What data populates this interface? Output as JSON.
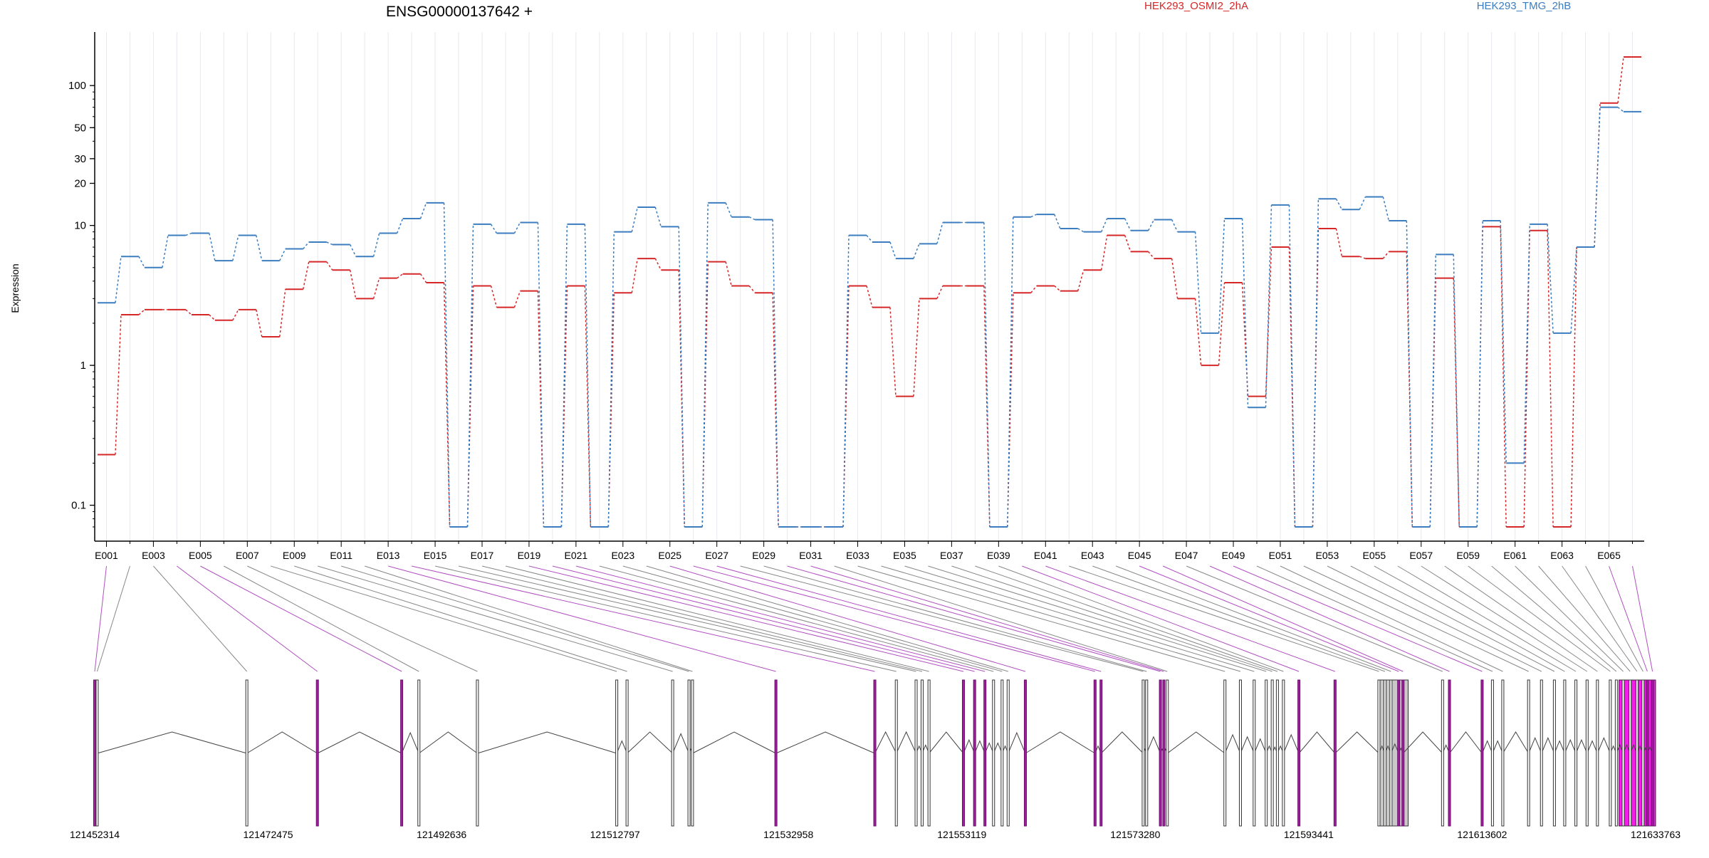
{
  "chart_data": {
    "type": "line",
    "title": "ENSG00000137642 +",
    "xlabel": "",
    "ylabel": "Expression",
    "yscale": "log",
    "ylim": [
      0.07,
      180
    ],
    "yticks": [
      {
        "value": 0.1,
        "label": "0.1"
      },
      {
        "value": 1,
        "label": "1"
      },
      {
        "value": 10,
        "label": "10"
      },
      {
        "value": 20,
        "label": "20"
      },
      {
        "value": 30,
        "label": "30"
      },
      {
        "value": 50,
        "label": "50"
      },
      {
        "value": 100,
        "label": "100"
      }
    ],
    "grid": true,
    "legend_position": "top",
    "colors": {
      "series_a": "#d62728",
      "series_b": "#3b7dbf",
      "exon": "#555555",
      "intron": "#444444",
      "highlight": "#a020a0",
      "grey_exon": "#c8c8c8",
      "magenta_exon": "#f01ee6"
    },
    "categories": [
      "E001",
      "E002",
      "E003",
      "E004",
      "E005",
      "E006",
      "E007",
      "E008",
      "E009",
      "E010",
      "E011",
      "E012",
      "E013",
      "E014",
      "E015",
      "E016",
      "E017",
      "E018",
      "E019",
      "E020",
      "E021",
      "E022",
      "E023",
      "E024",
      "E025",
      "E026",
      "E027",
      "E028",
      "E029",
      "E030",
      "E031",
      "E032",
      "E033",
      "E034",
      "E035",
      "E036",
      "E037",
      "E038",
      "E039",
      "E040",
      "E041",
      "E042",
      "E043",
      "E044",
      "E045",
      "E046",
      "E047",
      "E048",
      "E049",
      "E050",
      "E051",
      "E052",
      "E053",
      "E054",
      "E055",
      "E056",
      "E057",
      "E058",
      "E059",
      "E060",
      "E061",
      "E062",
      "E063",
      "E064",
      "E065",
      "E066"
    ],
    "series": [
      {
        "name": "HEK293_OSMI2_2hA",
        "values": [
          0.23,
          2.3,
          2.5,
          2.5,
          2.3,
          2.1,
          2.5,
          1.6,
          3.5,
          5.5,
          4.8,
          3.0,
          4.2,
          4.5,
          3.9,
          0.07,
          3.7,
          2.6,
          3.4,
          0.07,
          3.7,
          0.07,
          3.3,
          5.8,
          4.8,
          0.07,
          5.5,
          3.7,
          3.3,
          0.07,
          0.07,
          0.07,
          3.7,
          2.6,
          0.6,
          3.0,
          3.7,
          3.7,
          0.07,
          3.3,
          3.7,
          3.4,
          4.8,
          8.5,
          6.5,
          5.8,
          3.0,
          1.0,
          3.9,
          0.6,
          7.0,
          0.07,
          9.5,
          6.0,
          5.8,
          6.5,
          0.07,
          4.2,
          0.07,
          9.8,
          0.07,
          9.2,
          0.07,
          7.0,
          75,
          160
        ]
      },
      {
        "name": "HEK293_TMG_2hB",
        "values": [
          2.8,
          6.0,
          5.0,
          8.5,
          8.8,
          5.6,
          8.5,
          5.6,
          6.8,
          7.6,
          7.3,
          6.0,
          8.8,
          11.2,
          14.5,
          0.07,
          10.2,
          8.8,
          10.5,
          0.07,
          10.2,
          0.07,
          9.0,
          13.5,
          9.8,
          0.07,
          14.5,
          11.5,
          11.0,
          0.07,
          0.07,
          0.07,
          8.5,
          7.6,
          5.8,
          7.4,
          10.5,
          10.5,
          0.07,
          11.5,
          12,
          9.5,
          9.0,
          11.2,
          9.2,
          11.0,
          9.0,
          1.7,
          11.2,
          0.5,
          14.0,
          0.07,
          15.5,
          13.0,
          16.0,
          10.8,
          0.07,
          6.2,
          0.07,
          10.8,
          0.2,
          10.2,
          1.7,
          7.0,
          70,
          65
        ]
      }
    ],
    "xaxis_tick_labels": [
      "E001",
      "E003",
      "E005",
      "E007",
      "E009",
      "E011",
      "E013",
      "E015",
      "E017",
      "E019",
      "E021",
      "E023",
      "E025",
      "E027",
      "E029",
      "E031",
      "E033",
      "E035",
      "E037",
      "E039",
      "E041",
      "E043",
      "E045",
      "E047",
      "E049",
      "E051",
      "E053",
      "E055",
      "E057",
      "E059",
      "E061",
      "E063",
      "E065"
    ],
    "genomic_axis": {
      "range": [
        121452314,
        121633763
      ],
      "tick_labels": [
        "121452314",
        "121472475",
        "121492636",
        "121512797",
        "121532958",
        "121553119",
        "121573280",
        "121593441",
        "121613602",
        "121633763"
      ]
    },
    "exon_positions": [
      121452314,
      121452600,
      121470000,
      121478200,
      121488000,
      121490000,
      121496800,
      121513000,
      121514200,
      121519500,
      121521400,
      121521800,
      121531500,
      121543000,
      121545500,
      121547800,
      121548500,
      121549300,
      121553300,
      121554600,
      121555800,
      121556800,
      121557800,
      121558500,
      121560500,
      121568600,
      121569300,
      121574200,
      121574600,
      121576200,
      121576600,
      121577000,
      121583700,
      121585500,
      121587100,
      121588500,
      121589200,
      121589800,
      121590500,
      121592300,
      121596500,
      121601600,
      121602300,
      121603000,
      121603900,
      121604400,
      121609000,
      121609800,
      121613600,
      121614800,
      121616000,
      121619000,
      121620500,
      121622000,
      121623200,
      121624500,
      121625800,
      121627000,
      121628500,
      121629200,
      121630000,
      121630800,
      121631600,
      121632300,
      121632800,
      121633400
    ],
    "highlighted_exons": [
      1,
      4,
      5,
      13,
      14,
      19,
      20,
      21,
      25,
      26,
      27,
      30,
      31,
      40,
      41,
      45,
      46,
      48,
      49,
      65,
      66
    ],
    "grey_exon_ranges": [
      [
        121601600,
        121605000
      ]
    ],
    "magenta_exon_ranges": [
      [
        121629500,
        121633763
      ]
    ]
  }
}
